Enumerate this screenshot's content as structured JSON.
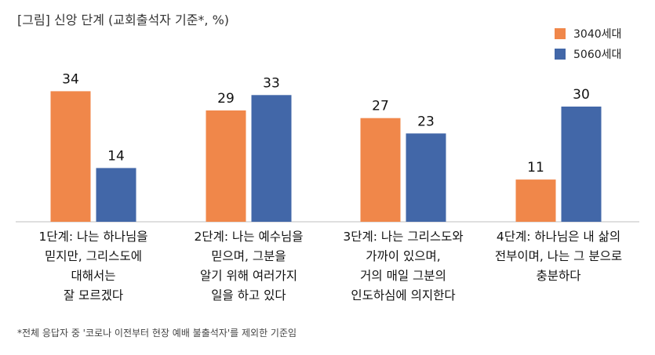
{
  "title": "[그림] 신앙 단계 (교회출석자 기준*, %)",
  "footnote": "*전체 응답자 중 '코로나 이전부터 현장 예배 불출석자'를 제외한 기준임",
  "colors": {
    "orange": "#F0874A",
    "blue": "#4267A8",
    "axis": "#bfbfbf"
  },
  "chart_data": {
    "type": "bar",
    "title": "[그림] 신앙 단계 (교회출석자 기준*, %)",
    "categories": [
      [
        "1단계: 나는 하나님을",
        "믿지만, 그리스도에",
        "대해서는",
        "잘 모르겠다"
      ],
      [
        "2단계: 나는 예수님을",
        "믿으며, 그분을",
        "알기 위해 여러가지",
        "일을 하고 있다"
      ],
      [
        "3단계: 나는 그리스도와",
        "가까이 있으며,",
        "거의 매일 그분의",
        "인도하심에 의지한다"
      ],
      [
        "4단계: 하나님은 내 삶의",
        "전부이며, 나는 그 분으로",
        "충분하다"
      ]
    ],
    "series": [
      {
        "name": "3040세대",
        "color": "#F0874A",
        "values": [
          34,
          29,
          27,
          11
        ]
      },
      {
        "name": "5060세대",
        "color": "#4267A8",
        "values": [
          14,
          33,
          23,
          30
        ]
      }
    ],
    "ylim": [
      0,
      40
    ],
    "legend": "top-right",
    "grid": false
  }
}
